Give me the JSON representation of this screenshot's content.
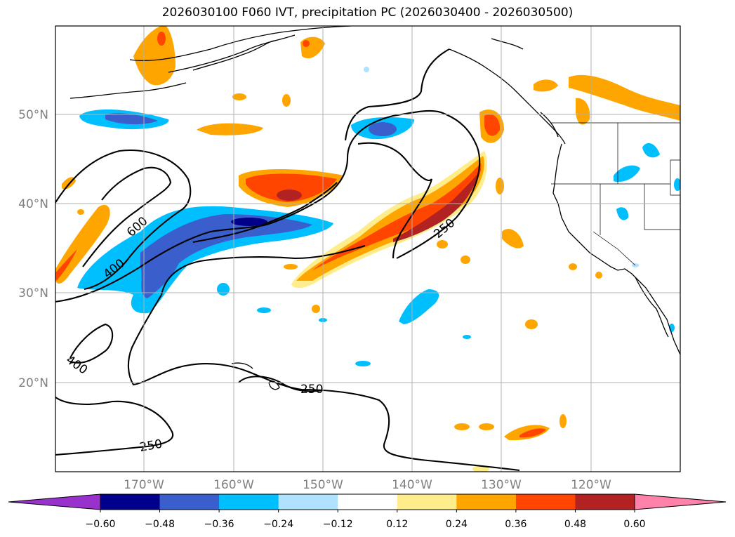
{
  "title": "2026030100 F060 IVT, precipitation PC (2026030400 - 2026030500)",
  "map": {
    "lat_labels": [
      "50°N",
      "40°N",
      "30°N",
      "20°N"
    ],
    "lon_labels": [
      "170°W",
      "160°W",
      "150°W",
      "140°W",
      "130°W",
      "120°W"
    ],
    "contour_labels": [
      "600",
      "400",
      "400",
      "250",
      "250",
      "250"
    ]
  },
  "colorbar": {
    "ticks": [
      "−0.60",
      "−0.48",
      "−0.36",
      "−0.24",
      "−0.12",
      "0.12",
      "0.24",
      "0.36",
      "0.48",
      "0.60"
    ],
    "colors": [
      "#9932cc",
      "#00008b",
      "#3a5fcd",
      "#00bfff",
      "#b0e2ff",
      "#ffffff",
      "#ffec8b",
      "#ffa500",
      "#ff4500",
      "#b22222",
      "#ff82ab"
    ]
  },
  "legend": {
    "negative_colors": [
      "#3a5fcd",
      "#00bfff",
      "#b0e2ff"
    ],
    "positive_colors": [
      "#ffec8b",
      "#ffa500",
      "#ff4500",
      "#b22222"
    ]
  }
}
